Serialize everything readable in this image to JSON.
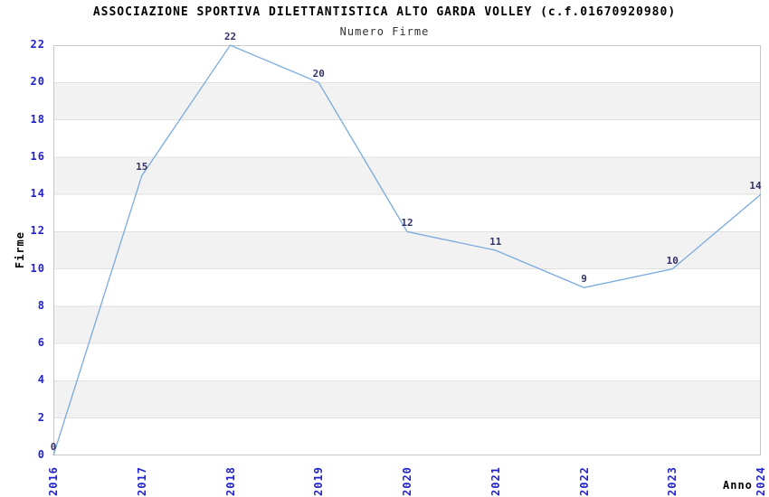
{
  "chart_data": {
    "type": "line",
    "title": "ASSOCIAZIONE SPORTIVA DILETTANTISTICA ALTO GARDA VOLLEY (c.f.01670920980)",
    "subtitle": "Numero Firme",
    "xlabel": "Anno",
    "ylabel": "Firme",
    "categories": [
      "2016",
      "2017",
      "2018",
      "2019",
      "2020",
      "2021",
      "2022",
      "2023",
      "2024"
    ],
    "series": [
      {
        "name": "Numero Firme",
        "values": [
          0,
          15,
          22,
          20,
          12,
          11,
          9,
          10,
          14
        ]
      }
    ],
    "point_labels": [
      "0",
      "15",
      "22",
      "20",
      "12",
      "11",
      "9",
      "10",
      "14"
    ],
    "ylim": [
      0,
      22
    ],
    "y_ticks": [
      0,
      2,
      4,
      6,
      8,
      10,
      12,
      14,
      16,
      18,
      20,
      22
    ],
    "legend": "none",
    "grid": "horizontal-bands",
    "markers": "none",
    "style": {
      "line_color": "#7aaade",
      "tick_label_color": "#2222cc",
      "point_label_color": "#333366",
      "band_color": "#f2f2f2",
      "grid_color": "#e0e0e0",
      "border_color": "#c8c8c8",
      "title_color": "#000000",
      "subtitle_color": "#333333",
      "axis_title_color": "#000000",
      "background": "#ffffff"
    }
  }
}
